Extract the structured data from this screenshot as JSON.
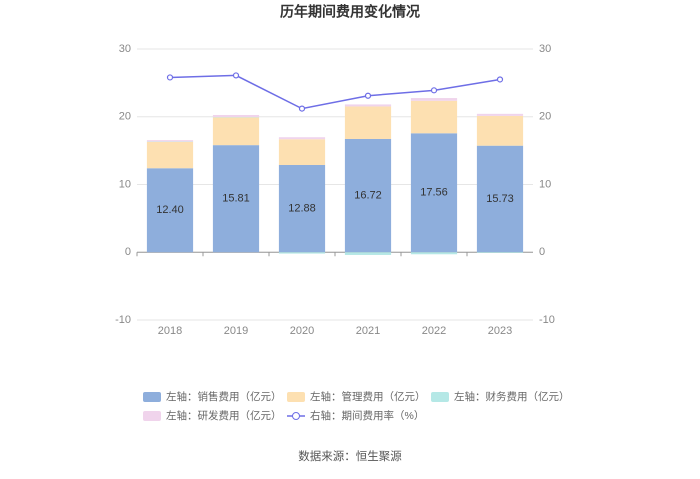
{
  "chart_data": {
    "type": "bar",
    "title": "历年期间费用变化情况",
    "categories": [
      "2018",
      "2019",
      "2020",
      "2021",
      "2022",
      "2023"
    ],
    "series": [
      {
        "name": "左轴：销售费用（亿元）",
        "color": "#8eaedc",
        "values": [
          12.4,
          15.81,
          12.88,
          16.72,
          17.56,
          15.73
        ],
        "value_labels": [
          "12.40",
          "15.81",
          "12.88",
          "16.72",
          "17.56",
          "15.73"
        ]
      },
      {
        "name": "左轴：管理费用（亿元）",
        "color": "#fde0b1",
        "values": [
          3.9,
          4.1,
          3.8,
          4.8,
          4.8,
          4.4
        ]
      },
      {
        "name": "左轴：财务费用（亿元）",
        "color": "#b5e8e6",
        "values": [
          0.05,
          0.05,
          -0.2,
          -0.4,
          -0.3,
          -0.1
        ]
      },
      {
        "name": "左轴：研发费用（亿元）",
        "color": "#f0d4ec",
        "values": [
          0.2,
          0.3,
          0.3,
          0.3,
          0.4,
          0.3
        ]
      },
      {
        "name": "右轴：期间费用率（%）",
        "color": "#6e6ee6",
        "axis": "y2",
        "type": "line",
        "values": [
          25.8,
          26.1,
          21.2,
          23.1,
          23.9,
          25.5
        ]
      }
    ],
    "ylim": [
      -10,
      30
    ],
    "yticks": [
      -10,
      0,
      10,
      20,
      30
    ],
    "y2lim": [
      -10,
      30
    ],
    "y2ticks": [
      -10,
      0,
      10,
      20,
      30
    ],
    "grid": true,
    "source": "数据来源：恒生聚源"
  }
}
